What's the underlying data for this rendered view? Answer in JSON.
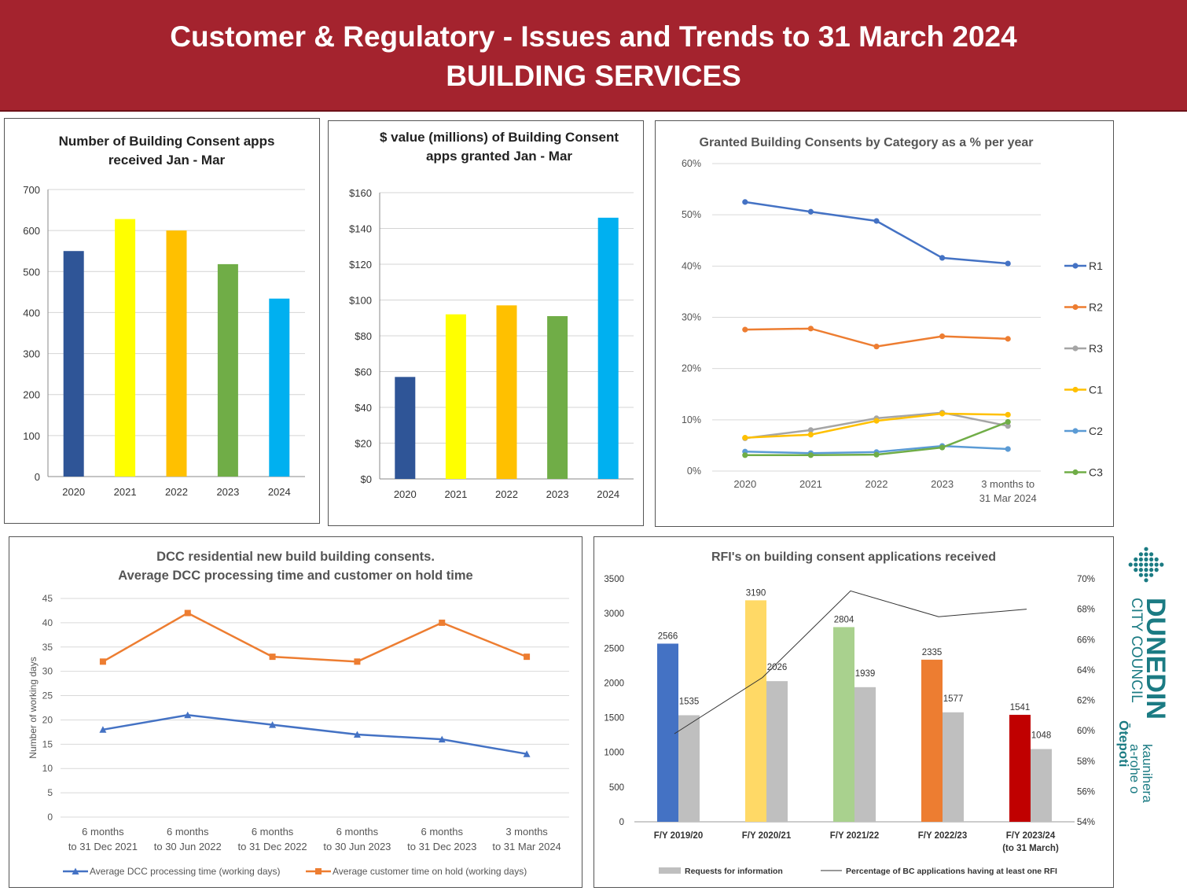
{
  "header": {
    "line1": "Customer & Regulatory - Issues and Trends to 31 March 2024",
    "line2": "BUILDING SERVICES",
    "background": "#a4232e"
  },
  "logo": {
    "name": "DUNEDIN",
    "sub": "CITY COUNCIL",
    "maori1": "kaunihera",
    "maori2": "a-rohe o",
    "maori3": "Ōtepoti",
    "icon": "dcc-diamond-icon",
    "color": "#1b7b83"
  },
  "chart_data": [
    {
      "type": "bar",
      "title": [
        "Number of Building Consent apps",
        "received Jan - Mar"
      ],
      "categories": [
        "2020",
        "2021",
        "2022",
        "2023",
        "2024"
      ],
      "values": [
        550,
        628,
        600,
        518,
        434
      ],
      "colors": [
        "#2f5597",
        "#ffff00",
        "#ffc000",
        "#70ad47",
        "#00b0f0"
      ],
      "ylim": [
        0,
        700
      ],
      "yticks": [
        "0",
        "100",
        "200",
        "300",
        "400",
        "500",
        "600",
        "700"
      ],
      "grid": true
    },
    {
      "type": "bar",
      "title": [
        "$ value (millions) of Building Consent",
        "apps granted Jan - Mar"
      ],
      "categories": [
        "2020",
        "2021",
        "2022",
        "2023",
        "2024"
      ],
      "values": [
        57,
        92,
        97,
        91,
        146
      ],
      "colors": [
        "#2f5597",
        "#ffff00",
        "#ffc000",
        "#70ad47",
        "#00b0f0"
      ],
      "ylim": [
        0,
        160
      ],
      "yticks": [
        "$0",
        "$20",
        "$40",
        "$60",
        "$80",
        "$100",
        "$120",
        "$140",
        "$160"
      ],
      "grid": true
    },
    {
      "type": "line",
      "title": [
        "Granted Building Consents by Category as a % per year"
      ],
      "categories": [
        "2020",
        "2021",
        "2022",
        "2023",
        "3 months to|31 Mar 2024"
      ],
      "ylim": [
        0,
        60
      ],
      "yticks": [
        "0%",
        "10%",
        "20%",
        "30%",
        "40%",
        "50%",
        "60%"
      ],
      "legend_position": "right",
      "grid": true,
      "series": [
        {
          "name": "R1",
          "color": "#4472c4",
          "values": [
            52.5,
            50.6,
            48.8,
            41.6,
            40.5
          ]
        },
        {
          "name": "R2",
          "color": "#ed7d31",
          "values": [
            27.6,
            27.8,
            24.3,
            26.3,
            25.8
          ]
        },
        {
          "name": "R3",
          "color": "#a5a5a5",
          "values": [
            6.4,
            8.0,
            10.3,
            11.4,
            8.8
          ]
        },
        {
          "name": "C1",
          "color": "#ffc000",
          "values": [
            6.5,
            7.1,
            9.8,
            11.2,
            11.0
          ]
        },
        {
          "name": "C2",
          "color": "#5b9bd5",
          "values": [
            3.8,
            3.5,
            3.7,
            4.9,
            4.3
          ]
        },
        {
          "name": "C3",
          "color": "#70ad47",
          "values": [
            3.1,
            3.1,
            3.2,
            4.6,
            9.6
          ]
        }
      ]
    },
    {
      "type": "line",
      "title": [
        "DCC residential new build building consents.",
        "Average DCC processing time and customer on hold time"
      ],
      "categories": [
        "6 months|to 31 Dec 2021",
        "6 months|to 30 Jun 2022",
        "6 months|to 31 Dec 2022",
        "6 months|to 30 Jun 2023",
        "6 months|to 31 Dec 2023",
        "3 months|to 31 Mar 2024"
      ],
      "ylabel": "Number of working days",
      "ylim": [
        0,
        45
      ],
      "yticks": [
        "0",
        "5",
        "10",
        "15",
        "20",
        "25",
        "30",
        "35",
        "40",
        "45"
      ],
      "legend_position": "bottom",
      "grid": true,
      "series": [
        {
          "name": "Average DCC processing time (working days)",
          "color": "#4472c4",
          "marker": "triangle",
          "values": [
            18,
            21,
            19,
            17,
            16,
            13
          ]
        },
        {
          "name": "Average customer time on hold (working days)",
          "color": "#ed7d31",
          "marker": "square",
          "values": [
            32,
            42,
            33,
            32,
            40,
            33
          ]
        }
      ]
    },
    {
      "type": "bar",
      "title": [
        "RFI's on building consent applications received"
      ],
      "categories": [
        "F/Y 2019/20",
        "F/Y 2020/21",
        "F/Y 2021/22",
        "F/Y 2022/23",
        "F/Y 2023/24|(to 31 March)"
      ],
      "ylim": [
        0,
        3500
      ],
      "yticks": [
        "0",
        "500",
        "1000",
        "1500",
        "2000",
        "2500",
        "3000",
        "3500"
      ],
      "y2lim": [
        54,
        70
      ],
      "y2ticks": [
        "54%",
        "56%",
        "58%",
        "60%",
        "62%",
        "64%",
        "66%",
        "68%",
        "70%"
      ],
      "legend_position": "bottom",
      "grid": false,
      "series": [
        {
          "name": "",
          "type": "bar",
          "colors": [
            "#4472c4",
            "#ffd966",
            "#a9d18e",
            "#ed7d31",
            "#c00000"
          ],
          "values": [
            2566,
            3190,
            2804,
            2335,
            1541
          ],
          "labels": [
            "2566",
            "3190",
            "2804",
            "2335",
            "1541"
          ]
        },
        {
          "name": "Requests for information",
          "type": "bar",
          "color": "#bfbfbf",
          "values": [
            1535,
            2026,
            1939,
            1577,
            1048
          ],
          "labels": [
            "1535",
            "2026",
            "1939",
            "1577",
            "1048"
          ]
        },
        {
          "name": "Percentage of BC applications having at least one RFI",
          "type": "line",
          "axis": "right",
          "color": "#333333",
          "values": [
            59.8,
            63.5,
            69.2,
            67.5,
            68.0
          ]
        }
      ]
    }
  ]
}
